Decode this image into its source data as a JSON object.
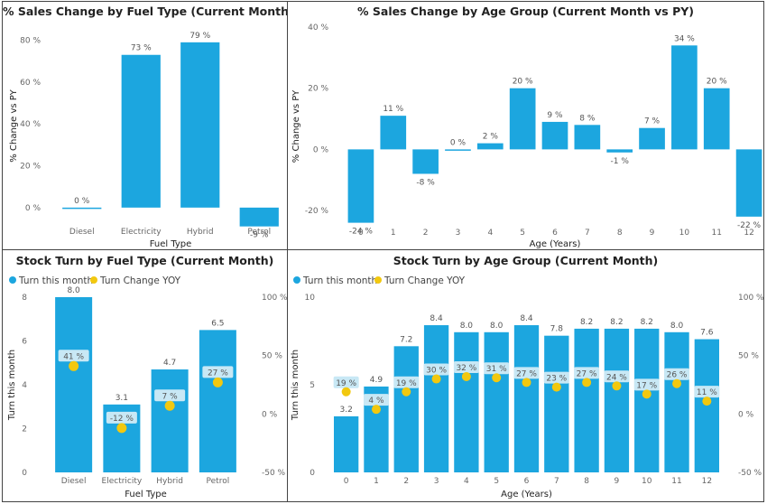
{
  "colors": {
    "bar": "#1CA6DF",
    "dot": "#F2C80F",
    "label_bg": "#C8E8F5",
    "text": "#222222",
    "axis_text": "#666666"
  },
  "panels": {
    "fuel_sales": {
      "title": "% Sales Change by Fuel Type (Current Month vs PY)"
    },
    "age_sales": {
      "title": "% Sales Change by Age Group (Current Month vs PY)"
    },
    "fuel_turn": {
      "title": "Stock Turn by Fuel Type (Current Month)"
    },
    "age_turn": {
      "title": "Stock Turn by Age Group (Current Month)"
    }
  },
  "chart_data": [
    {
      "id": "fuel_sales",
      "type": "bar",
      "title": "% Sales Change by Fuel Type (Current Month vs PY)",
      "xlabel": "Fuel Type",
      "ylabel": "% Change vs PY",
      "categories": [
        "Diesel",
        "Electricity",
        "Hybrid",
        "Petrol"
      ],
      "values": [
        0,
        73,
        79,
        -9
      ],
      "labels": [
        "0 %",
        "73 %",
        "79 %",
        "-9 %"
      ],
      "yticks": [
        0,
        20,
        40,
        60,
        80
      ],
      "ytick_labels": [
        "0 %",
        "20 %",
        "40 %",
        "60 %",
        "80 %"
      ],
      "ylim": [
        -10,
        88
      ]
    },
    {
      "id": "age_sales",
      "type": "bar",
      "title": "% Sales Change by Age Group (Current Month vs PY)",
      "xlabel": "Age (Years)",
      "ylabel": "% Change vs PY",
      "categories": [
        "0",
        "1",
        "2",
        "3",
        "4",
        "5",
        "6",
        "7",
        "8",
        "9",
        "10",
        "11",
        "12"
      ],
      "values": [
        -24,
        11,
        -8,
        0,
        2,
        20,
        9,
        8,
        -1,
        7,
        34,
        20,
        -22
      ],
      "labels": [
        "-24 %",
        "11 %",
        "-8 %",
        "0 %",
        "2 %",
        "20 %",
        "9 %",
        "8 %",
        "-1 %",
        "7 %",
        "34 %",
        "20 %",
        "-22 %"
      ],
      "yticks": [
        -20,
        0,
        20,
        40
      ],
      "ytick_labels": [
        "-20 %",
        "0 %",
        "20 %",
        "40 %"
      ],
      "ylim": [
        -25,
        40
      ]
    },
    {
      "id": "fuel_turn",
      "type": "bar",
      "title": "Stock Turn by Fuel Type (Current Month)",
      "xlabel": "Fuel Type",
      "ylabel": "Turn this month",
      "legend": [
        "Turn this month",
        "Turn Change YOY"
      ],
      "legend_position": "top-left",
      "categories": [
        "Diesel",
        "Electricity",
        "Hybrid",
        "Petrol"
      ],
      "series": [
        {
          "name": "Turn this month",
          "values": [
            8.0,
            3.1,
            4.7,
            6.5
          ],
          "labels": [
            "8.0",
            "3.1",
            "4.7",
            "6.5"
          ]
        },
        {
          "name": "Turn Change YOY",
          "values": [
            41,
            -12,
            7,
            27
          ],
          "labels": [
            "41 %",
            "-12 %",
            "7 %",
            "27 %"
          ]
        }
      ],
      "yticks": [
        0,
        2,
        4,
        6,
        8
      ],
      "ytick_labels": [
        "0",
        "2",
        "4",
        "6",
        "8"
      ],
      "ylim": [
        0,
        8
      ],
      "y2ticks": [
        -50,
        0,
        50,
        100
      ],
      "y2tick_labels": [
        "-50 %",
        "0 %",
        "50 %",
        "100 %"
      ],
      "y2lim": [
        -50,
        100
      ]
    },
    {
      "id": "age_turn",
      "type": "bar",
      "title": "Stock Turn by Age Group (Current Month)",
      "xlabel": "Age (Years)",
      "ylabel": "Turn this month",
      "legend": [
        "Turn this month",
        "Turn Change YOY"
      ],
      "legend_position": "top-left",
      "categories": [
        "0",
        "1",
        "2",
        "3",
        "4",
        "5",
        "6",
        "7",
        "8",
        "9",
        "10",
        "11",
        "12"
      ],
      "series": [
        {
          "name": "Turn this month",
          "values": [
            3.2,
            4.9,
            7.2,
            8.4,
            8.0,
            8.0,
            8.4,
            7.8,
            8.2,
            8.2,
            8.2,
            8.0,
            7.6
          ],
          "labels": [
            "3.2",
            "4.9",
            "7.2",
            "8.4",
            "8.0",
            "8.0",
            "8.4",
            "7.8",
            "8.2",
            "8.2",
            "8.2",
            "8.0",
            "7.6"
          ]
        },
        {
          "name": "Turn Change YOY",
          "values": [
            19,
            4,
            19,
            30,
            32,
            31,
            27,
            23,
            27,
            24,
            17,
            26,
            11
          ],
          "labels": [
            "19 %",
            "4 %",
            "19 %",
            "30 %",
            "32 %",
            "31 %",
            "27 %",
            "23 %",
            "27 %",
            "24 %",
            "17 %",
            "26 %",
            "11 %"
          ]
        }
      ],
      "yticks": [
        0,
        5,
        10
      ],
      "ytick_labels": [
        "0",
        "5",
        "10"
      ],
      "ylim": [
        0,
        10
      ],
      "y2ticks": [
        -50,
        0,
        50,
        100
      ],
      "y2tick_labels": [
        "-50 %",
        "0 %",
        "50 %",
        "100 %"
      ],
      "y2lim": [
        -50,
        100
      ]
    }
  ]
}
